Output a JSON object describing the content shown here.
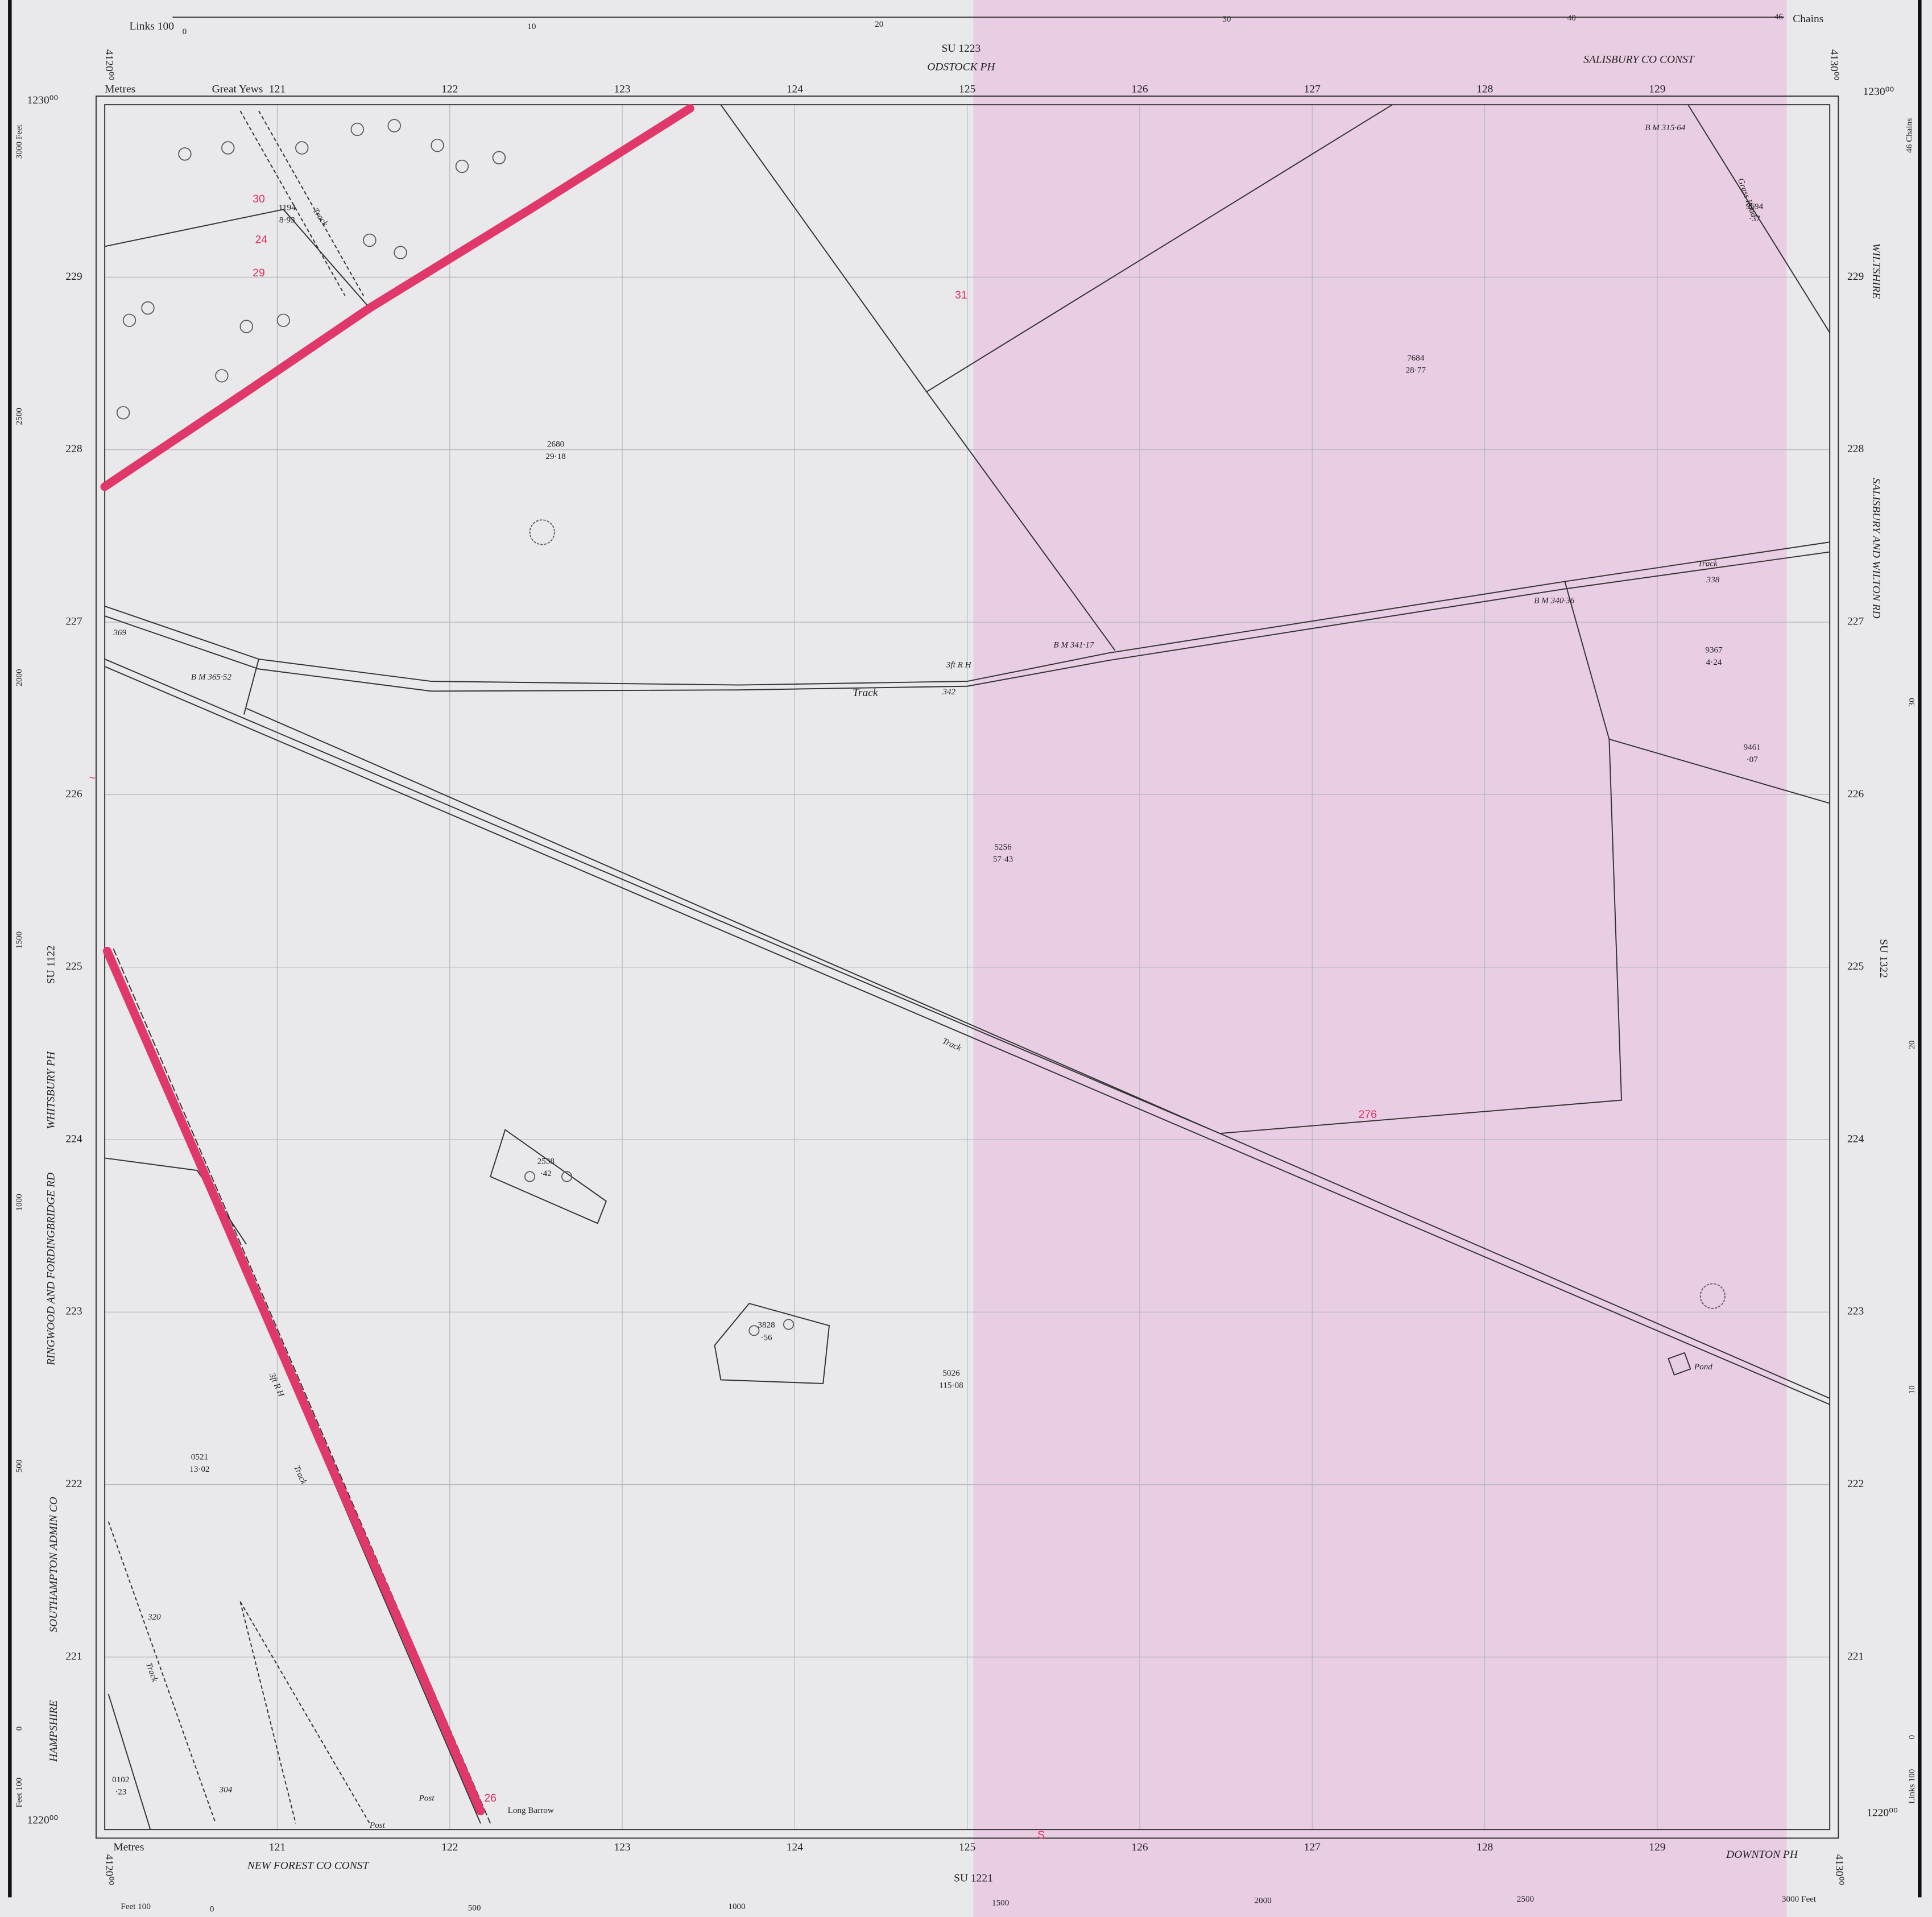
{
  "header": {
    "links_top": "Links 100",
    "chains_top": [
      "0",
      "10",
      "20",
      "30",
      "40",
      "46"
    ],
    "chains_label": "Chains",
    "sheet_top": "SU 1223",
    "parish_top": "ODSTOCK PH",
    "const_top": "SALISBURY CO CONST",
    "great_yews": "Great Yews",
    "metres": "Metres"
  },
  "corners": {
    "n_top": "1230⁰⁰",
    "n_bottom": "1220⁰⁰",
    "e_left": "4120⁰⁰",
    "e_right": "4130⁰⁰"
  },
  "grid": {
    "eastings": [
      121,
      122,
      123,
      124,
      125,
      126,
      127,
      128,
      129
    ],
    "northings": [
      221,
      222,
      223,
      224,
      225,
      226,
      227,
      228,
      229
    ]
  },
  "left_scale": {
    "feet_top": "3000 Feet",
    "ticks": [
      "2500",
      "2000",
      "1500",
      "1000",
      "500",
      "0"
    ],
    "feet_bottom": "Feet 100"
  },
  "right_scale": {
    "chains": "46 Chains",
    "ticks": [
      "30",
      "20",
      "10",
      "0"
    ],
    "links": "Links 100"
  },
  "bottom": {
    "metres": "Metres",
    "const": "NEW FOREST CO CONST",
    "sheet": "SU 1221",
    "parish": "DOWNTON PH",
    "feet_left": "Feet 100",
    "feet_ticks": [
      "0",
      "500",
      "1000",
      "1500",
      "2000",
      "2500"
    ],
    "feet_end": "3000 Feet"
  },
  "side": {
    "wiltshire": "WILTSHIRE",
    "rd_right": "SALISBURY AND WILTON RD",
    "sheet_right": "SU 1322",
    "sheet_left": "SU 1122",
    "parish_left": "WHITSBURY PH",
    "rd_left": "RINGWOOD AND FORDINGBRIDGE RD",
    "admin": "SOUTHAMPTON ADMIN CO",
    "county": "HAMPSHIRE"
  },
  "features": {
    "track": "Track",
    "grass_road": "Grass Road",
    "long_barrow": "Long Barrow",
    "pond": "Pond",
    "post": "Post",
    "rh": "3ft R H"
  },
  "parcels": [
    [
      "1194",
      "8·93"
    ],
    [
      "2680",
      "29·18"
    ],
    [
      "7684",
      "28·77"
    ],
    [
      "5256",
      "57·43"
    ],
    [
      "9367",
      "4·24"
    ],
    [
      "9461",
      "·07"
    ],
    [
      "2538",
      "·42"
    ],
    [
      "3828",
      "·56"
    ],
    [
      "5026",
      "115·08"
    ],
    [
      "0521",
      "13·02"
    ],
    [
      "0102",
      "·23"
    ],
    [
      "9694",
      "·37"
    ]
  ],
  "benchmarks": [
    "B M 365·52",
    "B M 341·17",
    "B M 340·36",
    "B M 315·64"
  ],
  "spot_heights": [
    "369",
    "342",
    "338",
    "320",
    "304"
  ],
  "handwritten": {
    "a": "31",
    "b": "276",
    "c": "30",
    "d": "24",
    "e": "29",
    "f": "26",
    "g": "S",
    "h": "~"
  }
}
